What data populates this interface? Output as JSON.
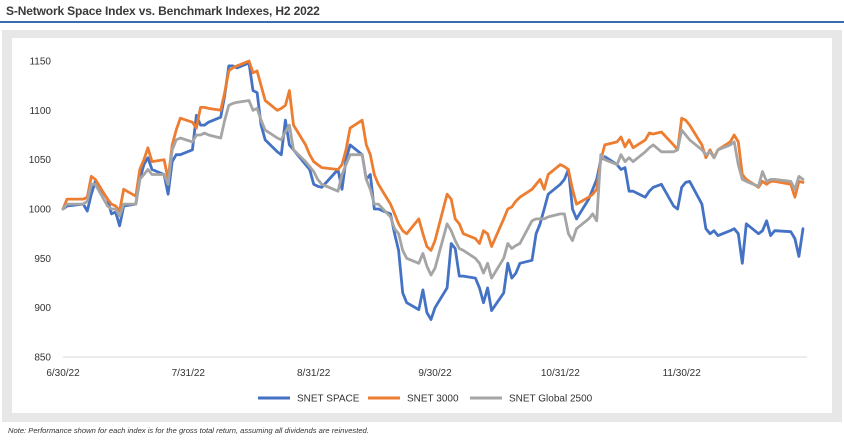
{
  "footnote": "Note: Performance shown for each index is for the gross total return, assuming all dividends are reinvested.",
  "colors": {
    "title_rule": "#3a6cb0",
    "panel": "#e7e7e7",
    "axis_line": "#d9d9d9"
  },
  "chart_data": {
    "type": "line",
    "title": "S-Network Space Index vs. Benchmark Indexes, H2 2022",
    "xlim": [
      "2022-06-30",
      "2022-12-31"
    ],
    "x_ticks": [
      "6/30/22",
      "7/31/22",
      "8/31/22",
      "9/30/22",
      "10/31/22",
      "11/30/22"
    ],
    "ylim": [
      850,
      1150
    ],
    "y_ticks": [
      850,
      900,
      950,
      1000,
      1050,
      1100,
      1150
    ],
    "grid": false,
    "legend": "bottom",
    "x": [
      "2022-06-30",
      "2022-07-01",
      "2022-07-05",
      "2022-07-06",
      "2022-07-07",
      "2022-07-08",
      "2022-07-11",
      "2022-07-12",
      "2022-07-13",
      "2022-07-14",
      "2022-07-15",
      "2022-07-18",
      "2022-07-19",
      "2022-07-20",
      "2022-07-21",
      "2022-07-22",
      "2022-07-25",
      "2022-07-26",
      "2022-07-27",
      "2022-07-28",
      "2022-07-29",
      "2022-08-01",
      "2022-08-02",
      "2022-08-03",
      "2022-08-04",
      "2022-08-05",
      "2022-08-08",
      "2022-08-09",
      "2022-08-10",
      "2022-08-11",
      "2022-08-12",
      "2022-08-15",
      "2022-08-16",
      "2022-08-17",
      "2022-08-18",
      "2022-08-19",
      "2022-08-22",
      "2022-08-23",
      "2022-08-24",
      "2022-08-25",
      "2022-08-26",
      "2022-08-29",
      "2022-08-30",
      "2022-08-31",
      "2022-09-01",
      "2022-09-02",
      "2022-09-06",
      "2022-09-07",
      "2022-09-08",
      "2022-09-09",
      "2022-09-12",
      "2022-09-13",
      "2022-09-14",
      "2022-09-15",
      "2022-09-16",
      "2022-09-19",
      "2022-09-20",
      "2022-09-21",
      "2022-09-22",
      "2022-09-23",
      "2022-09-26",
      "2022-09-27",
      "2022-09-28",
      "2022-09-29",
      "2022-09-30",
      "2022-10-03",
      "2022-10-04",
      "2022-10-05",
      "2022-10-06",
      "2022-10-07",
      "2022-10-10",
      "2022-10-11",
      "2022-10-12",
      "2022-10-13",
      "2022-10-14",
      "2022-10-17",
      "2022-10-18",
      "2022-10-19",
      "2022-10-20",
      "2022-10-21",
      "2022-10-24",
      "2022-10-25",
      "2022-10-26",
      "2022-10-27",
      "2022-10-28",
      "2022-10-31",
      "2022-11-01",
      "2022-11-02",
      "2022-11-03",
      "2022-11-04",
      "2022-11-07",
      "2022-11-08",
      "2022-11-09",
      "2022-11-10",
      "2022-11-11",
      "2022-11-14",
      "2022-11-15",
      "2022-11-16",
      "2022-11-17",
      "2022-11-18",
      "2022-11-21",
      "2022-11-22",
      "2022-11-23",
      "2022-11-25",
      "2022-11-28",
      "2022-11-29",
      "2022-11-30",
      "2022-12-01",
      "2022-12-02",
      "2022-12-05",
      "2022-12-06",
      "2022-12-07",
      "2022-12-08",
      "2022-12-09",
      "2022-12-12",
      "2022-12-13",
      "2022-12-14",
      "2022-12-15",
      "2022-12-16",
      "2022-12-19",
      "2022-12-20",
      "2022-12-21",
      "2022-12-22",
      "2022-12-23",
      "2022-12-27",
      "2022-12-28",
      "2022-12-29",
      "2022-12-30"
    ],
    "series": [
      {
        "name": "SNET SPACE",
        "color": "#4472c4",
        "values": [
          1000,
          1003,
          1005,
          998,
          1015,
          1028,
          1010,
          995,
          997,
          983,
          1003,
          1005,
          1030,
          1045,
          1052,
          1040,
          1035,
          1015,
          1048,
          1055,
          1055,
          1060,
          1095,
          1085,
          1085,
          1088,
          1093,
          1115,
          1145,
          1145,
          1143,
          1148,
          1120,
          1118,
          1085,
          1070,
          1058,
          1055,
          1090,
          1065,
          1060,
          1045,
          1040,
          1025,
          1023,
          1022,
          1040,
          1020,
          1050,
          1065,
          1055,
          1030,
          1035,
          1000,
          1000,
          995,
          975,
          958,
          915,
          905,
          898,
          918,
          895,
          888,
          900,
          920,
          965,
          960,
          932,
          932,
          930,
          920,
          905,
          920,
          897,
          915,
          945,
          930,
          935,
          945,
          948,
          975,
          985,
          1000,
          1015,
          1025,
          1030,
          1040,
          1000,
          990,
          1010,
          1020,
          1030,
          1050,
          1053,
          1045,
          1040,
          1042,
          1018,
          1018,
          1012,
          1018,
          1022,
          1025,
          1003,
          1000,
          1022,
          1027,
          1028,
          1005,
          980,
          975,
          978,
          973,
          978,
          980,
          975,
          945,
          985,
          975,
          978,
          988,
          973,
          978,
          977,
          970,
          952,
          980
        ]
      },
      {
        "name": "SNET 3000",
        "color": "#ed7d31",
        "values": [
          1000,
          1010,
          1010,
          1012,
          1033,
          1030,
          1010,
          1005,
          1003,
          998,
          1020,
          1013,
          1040,
          1050,
          1062,
          1048,
          1050,
          1030,
          1065,
          1080,
          1092,
          1088,
          1082,
          1103,
          1103,
          1102,
          1100,
          1118,
          1140,
          1143,
          1145,
          1150,
          1138,
          1140,
          1125,
          1110,
          1100,
          1102,
          1105,
          1120,
          1085,
          1065,
          1055,
          1048,
          1045,
          1042,
          1040,
          1045,
          1060,
          1082,
          1090,
          1065,
          1055,
          1035,
          1025,
          1005,
          995,
          985,
          978,
          975,
          990,
          975,
          962,
          958,
          968,
          1015,
          1010,
          990,
          985,
          975,
          970,
          965,
          978,
          975,
          962,
          990,
          1000,
          1002,
          1008,
          1012,
          1020,
          1025,
          1030,
          1020,
          1035,
          1045,
          1043,
          1040,
          1020,
          1005,
          1012,
          1015,
          1020,
          1050,
          1065,
          1068,
          1073,
          1063,
          1070,
          1062,
          1070,
          1077,
          1076,
          1078,
          1065,
          1060,
          1092,
          1090,
          1085,
          1065,
          1052,
          1060,
          1052,
          1060,
          1068,
          1075,
          1068,
          1035,
          1030,
          1022,
          1028,
          1025,
          1028,
          1028,
          1025,
          1012,
          1028,
          1027
        ]
      },
      {
        "name": "SNET Global 2500",
        "color": "#a5a5a5",
        "values": [
          1000,
          1005,
          1005,
          1008,
          1025,
          1025,
          1003,
          1000,
          1000,
          993,
          1005,
          1005,
          1030,
          1035,
          1040,
          1035,
          1035,
          1025,
          1060,
          1070,
          1072,
          1068,
          1075,
          1075,
          1077,
          1075,
          1072,
          1090,
          1105,
          1107,
          1108,
          1110,
          1100,
          1102,
          1090,
          1080,
          1072,
          1070,
          1078,
          1085,
          1060,
          1048,
          1043,
          1038,
          1030,
          1025,
          1018,
          1035,
          1045,
          1055,
          1055,
          1030,
          1020,
          1005,
          1005,
          992,
          980,
          975,
          958,
          950,
          945,
          955,
          942,
          933,
          940,
          985,
          978,
          968,
          960,
          958,
          950,
          945,
          935,
          945,
          930,
          950,
          965,
          960,
          963,
          965,
          988,
          990,
          990,
          990,
          992,
          995,
          995,
          975,
          968,
          980,
          990,
          995,
          988,
          1055,
          1050,
          1045,
          1055,
          1048,
          1052,
          1048,
          1058,
          1062,
          1065,
          1058,
          1058,
          1060,
          1080,
          1075,
          1070,
          1060,
          1055,
          1058,
          1052,
          1060,
          1065,
          1068,
          1045,
          1030,
          1028,
          1023,
          1038,
          1028,
          1030,
          1030,
          1028,
          1020,
          1033,
          1030
        ]
      }
    ]
  }
}
